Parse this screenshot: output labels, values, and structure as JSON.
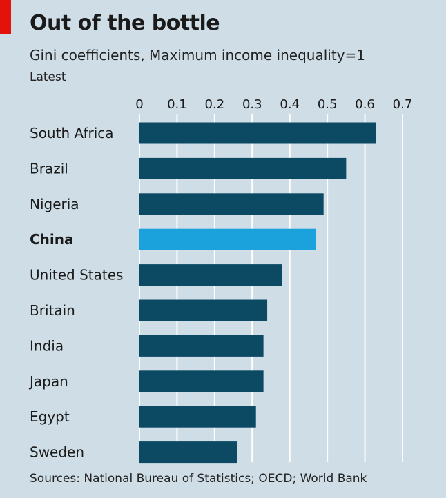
{
  "header": {
    "title": "Out of the bottle",
    "subtitle": "Gini coefficients, Maximum income inequality=1",
    "note": "Latest"
  },
  "footer": {
    "source": "Sources: National Bureau of Statistics; OECD; World Bank"
  },
  "colors": {
    "accent": "#e3120b",
    "bar": "#0c4a64",
    "highlight_bar": "#1ba1dc",
    "background": "#cedde6",
    "gridline": "#ffffff"
  },
  "chart_data": {
    "type": "bar",
    "orientation": "horizontal",
    "title": "Out of the bottle",
    "subtitle": "Gini coefficients, Maximum income inequality=1",
    "xlabel": "",
    "ylabel": "",
    "xlim": [
      0,
      0.7
    ],
    "grid": true,
    "ticks": [
      "0",
      "0.1",
      "0.2",
      "0.3",
      "0.4",
      "0.5",
      "0.6",
      "0.7"
    ],
    "tick_values": [
      0,
      0.1,
      0.2,
      0.3,
      0.4,
      0.5,
      0.6,
      0.7
    ],
    "categories": [
      "South Africa",
      "Brazil",
      "Nigeria",
      "China",
      "United States",
      "Britain",
      "India",
      "Japan",
      "Egypt",
      "Sweden"
    ],
    "values": [
      0.63,
      0.55,
      0.49,
      0.47,
      0.38,
      0.34,
      0.33,
      0.33,
      0.31,
      0.26
    ],
    "highlight": "China"
  }
}
